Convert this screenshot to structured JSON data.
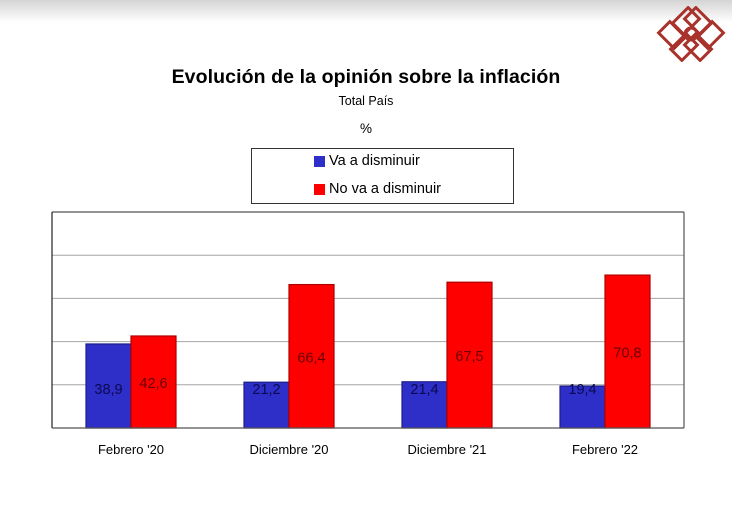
{
  "header": {
    "logo_icon": "red-diamond-lattice-logo"
  },
  "chart_data": {
    "type": "bar",
    "title": "Evolución de la opinión sobre la inflación",
    "subtitle": "Total País",
    "unit_label": "%",
    "xlabel": "",
    "ylabel": "",
    "ylim": [
      0,
      100
    ],
    "y_gridlines": [
      20,
      40,
      60,
      80,
      100
    ],
    "y_tick_labels_visible": false,
    "grid": true,
    "legend_position": "top-center",
    "categories": [
      "Febrero '20",
      "Diciembre '20",
      "Diciembre '21",
      "Febrero '22"
    ],
    "series": [
      {
        "name": "Va a disminuir",
        "color": "#2e2ec8",
        "label_color": "#0a0a50",
        "values": [
          38.9,
          21.2,
          21.4,
          19.4
        ],
        "labels": [
          "38,9",
          "21,2",
          "21,4",
          "19,4"
        ]
      },
      {
        "name": "No va a disminuir",
        "color": "#ff0000",
        "label_color": "#6a0000",
        "values": [
          42.6,
          66.4,
          67.5,
          70.8
        ],
        "labels": [
          "42,6",
          "66,4",
          "67,5",
          "70,8"
        ]
      }
    ]
  }
}
